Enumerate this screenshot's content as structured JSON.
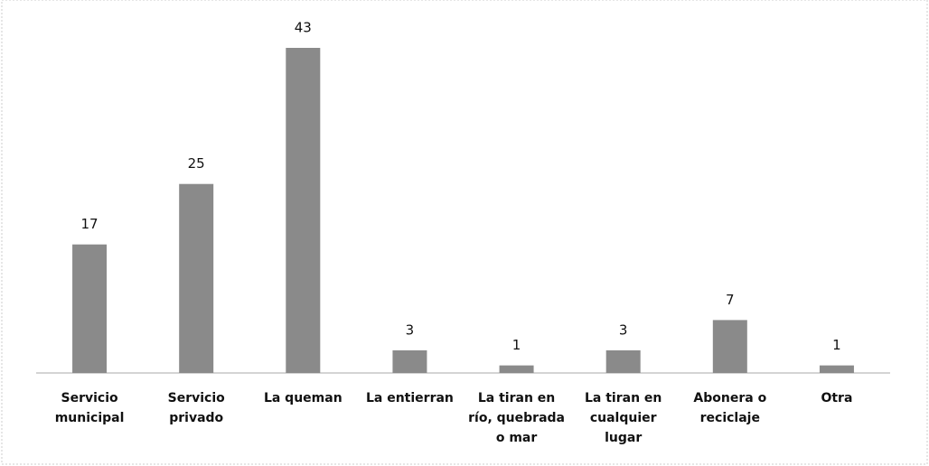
{
  "chart_data": {
    "type": "bar",
    "categories": [
      [
        "Servicio",
        "municipal"
      ],
      [
        "Servicio",
        "privado"
      ],
      [
        "La queman"
      ],
      [
        "La entierran"
      ],
      [
        "La tiran en",
        "río, quebrada",
        "o mar"
      ],
      [
        "La tiran en",
        "cualquier",
        "lugar"
      ],
      [
        "Abonera o",
        "reciclaje"
      ],
      [
        "Otra"
      ]
    ],
    "values": [
      17,
      25,
      43,
      3,
      1,
      3,
      7,
      1
    ],
    "color": "#8a8a8a"
  }
}
